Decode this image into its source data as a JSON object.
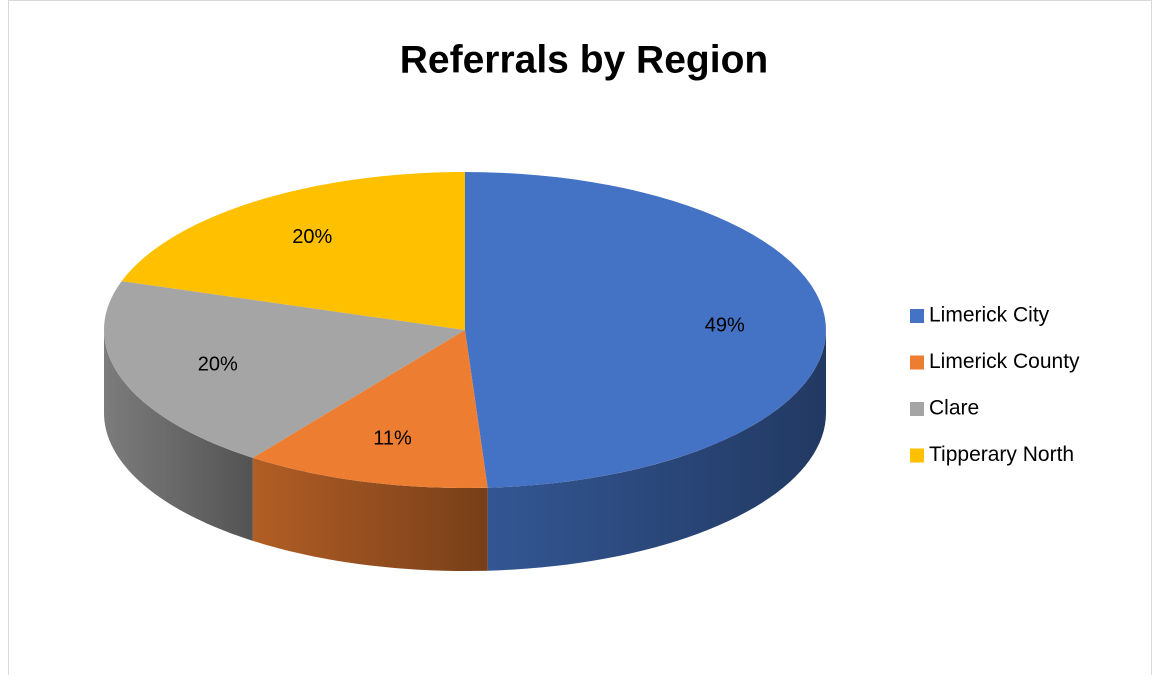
{
  "chart_data": {
    "type": "pie",
    "title": "Referrals by Region",
    "categories": [
      "Limerick City",
      "Limerick County",
      "Clare",
      "Tipperary North"
    ],
    "values": [
      49,
      11,
      20,
      20
    ],
    "value_labels": [
      "49%",
      "11%",
      "20%",
      "20%"
    ],
    "colors": [
      "#4472c4",
      "#ed7d31",
      "#a5a5a5",
      "#ffc000"
    ],
    "legend": "right"
  }
}
